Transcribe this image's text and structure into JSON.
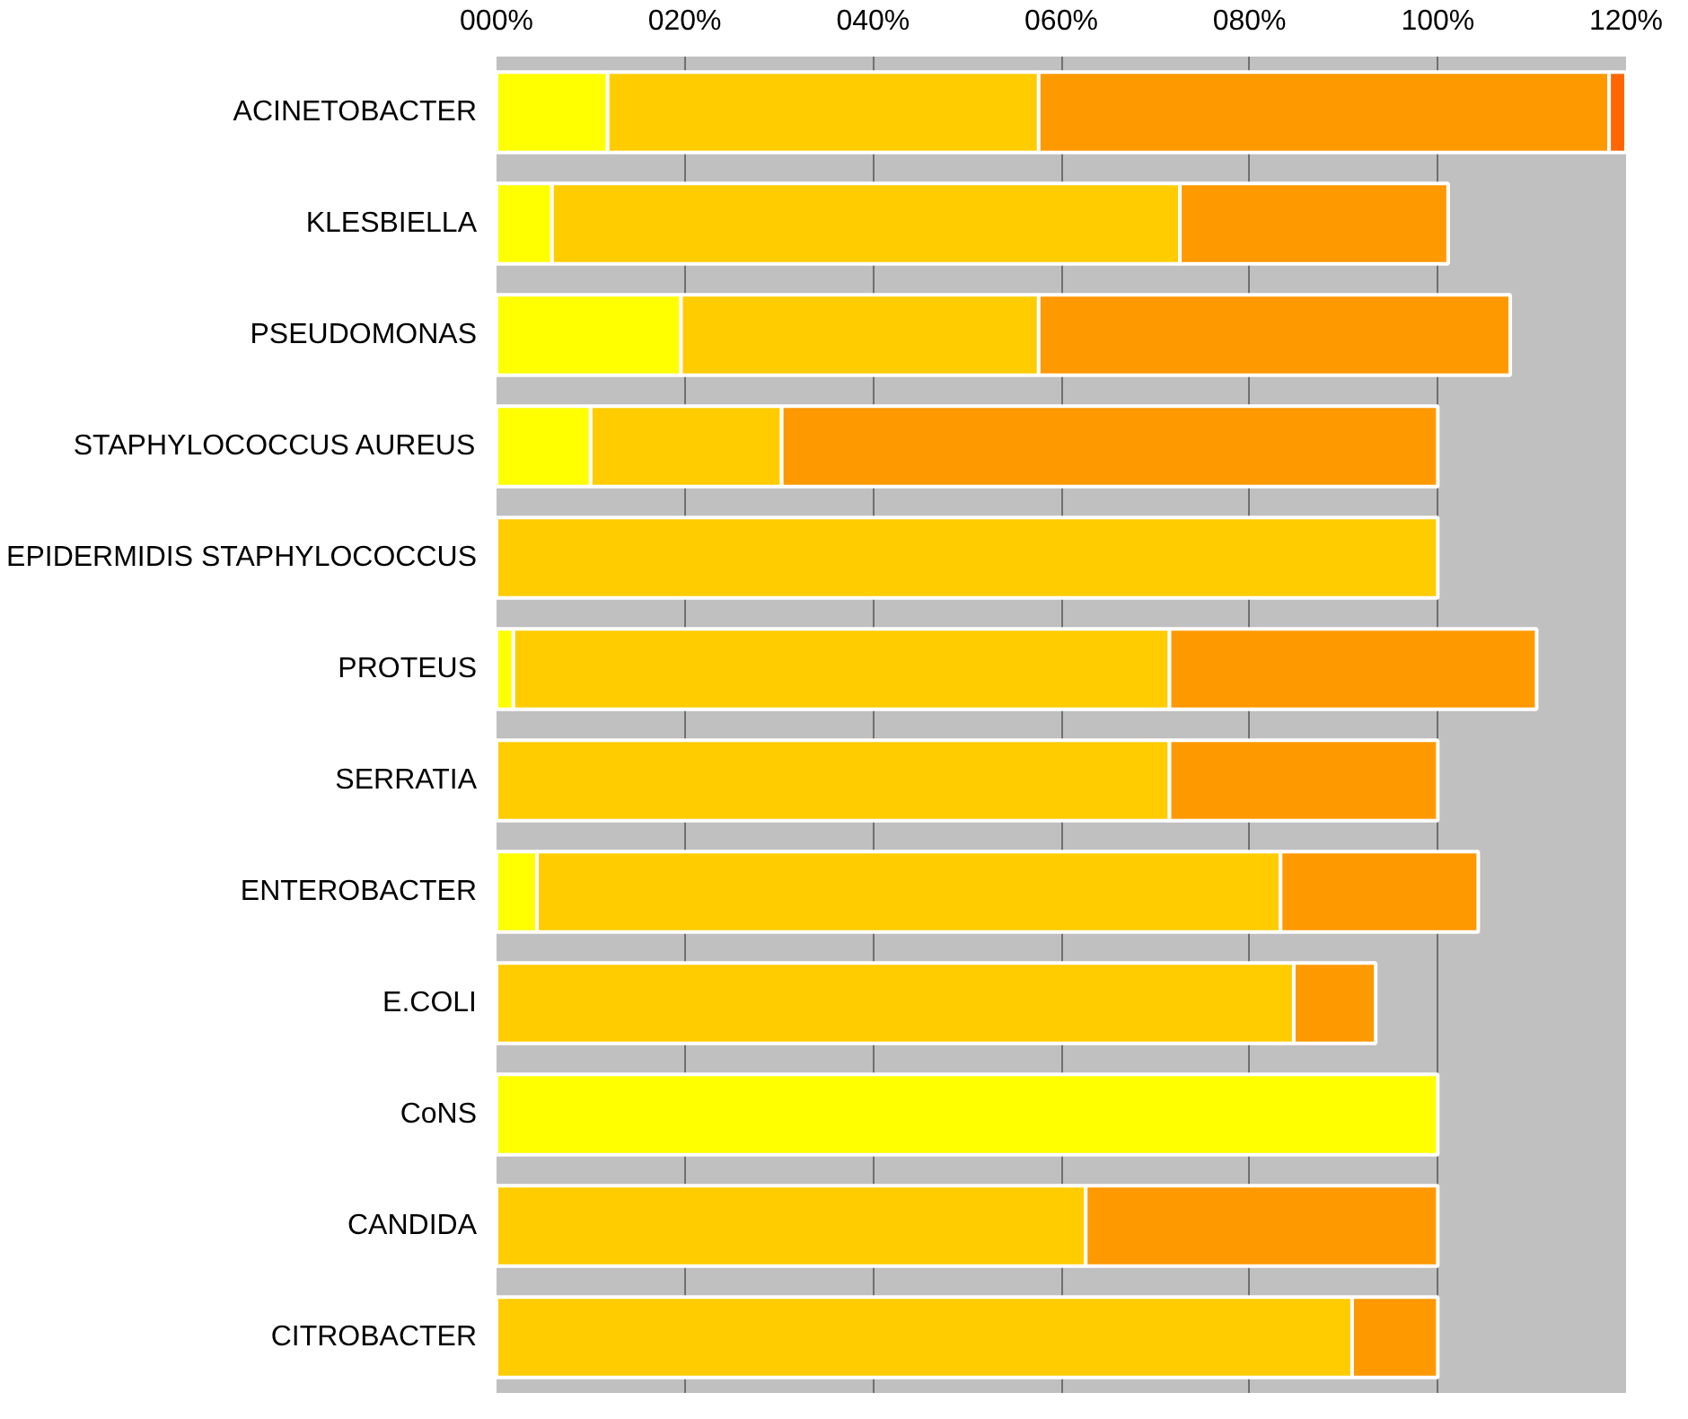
{
  "chart_data": {
    "type": "bar",
    "orientation": "horizontal",
    "stacked": true,
    "categories": [
      "ACINETOBACTER",
      "KLESBIELLA",
      "PSEUDOMONAS",
      "STAPHYLOCOCCUS AUREUS",
      "EPIDERMIDIS STAPHYLOCOCCUS",
      "PROTEUS",
      "SERRATIA",
      "ENTEROBACTER",
      "E.COLI",
      "CoNS",
      "CANDIDA",
      "CITROBACTER"
    ],
    "series": [
      {
        "color": "#ffff00",
        "values": [
          11.8,
          5.9,
          19.6,
          10,
          null,
          1.8,
          null,
          4.3,
          null,
          100,
          null,
          null
        ]
      },
      {
        "color": "#ffcc00",
        "values": [
          45.8,
          66.7,
          38,
          20.3,
          100,
          69.7,
          71.5,
          79,
          84.7,
          null,
          62.6,
          90.9
        ]
      },
      {
        "color": "#ff9900",
        "values": [
          60.6,
          28.5,
          50.1,
          69.7,
          null,
          39,
          28.5,
          21,
          8.7,
          null,
          37.4,
          9.1
        ]
      },
      {
        "color": "#ff6600",
        "values": [
          1.8,
          null,
          null,
          null,
          null,
          null,
          null,
          null,
          null,
          null,
          null,
          null
        ]
      }
    ],
    "xlim": [
      0,
      120
    ],
    "xticks": [
      {
        "value": 0,
        "label": "000%"
      },
      {
        "value": 20,
        "label": "020%"
      },
      {
        "value": 40,
        "label": "040%"
      },
      {
        "value": 60,
        "label": "060%"
      },
      {
        "value": 80,
        "label": "080%"
      },
      {
        "value": 100,
        "label": "100%"
      },
      {
        "value": 120,
        "label": "120%"
      }
    ],
    "grid": "x"
  }
}
